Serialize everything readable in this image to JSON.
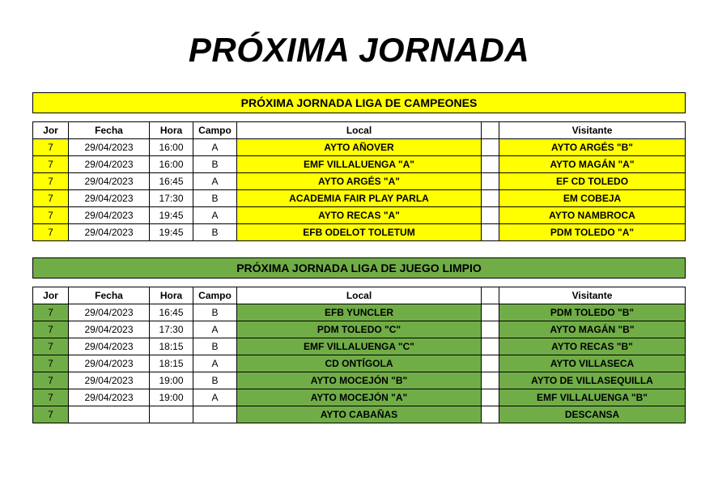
{
  "title": "PRÓXIMA JORNADA",
  "colors": {
    "league1_bg": "#ffff00",
    "league2_bg": "#70ad47",
    "border": "#000000",
    "plain_bg": "#ffffff"
  },
  "headers": {
    "jor": "Jor",
    "fecha": "Fecha",
    "hora": "Hora",
    "campo": "Campo",
    "local": "Local",
    "visitante": "Visitante"
  },
  "leagues": [
    {
      "banner": "PRÓXIMA JORNADA LIGA DE CAMPEONES",
      "color": "#ffff00",
      "rows": [
        {
          "jor": "7",
          "fecha": "29/04/2023",
          "hora": "16:00",
          "campo": "A",
          "local": "AYTO AÑOVER",
          "visitante": "AYTO ARGÉS \"B\""
        },
        {
          "jor": "7",
          "fecha": "29/04/2023",
          "hora": "16:00",
          "campo": "B",
          "local": "EMF VILLALUENGA \"A\"",
          "visitante": "AYTO MAGÁN \"A\""
        },
        {
          "jor": "7",
          "fecha": "29/04/2023",
          "hora": "16:45",
          "campo": "A",
          "local": "AYTO ARGÉS \"A\"",
          "visitante": "EF CD TOLEDO"
        },
        {
          "jor": "7",
          "fecha": "29/04/2023",
          "hora": "17:30",
          "campo": "B",
          "local": "ACADEMIA FAIR PLAY PARLA",
          "visitante": "EM COBEJA"
        },
        {
          "jor": "7",
          "fecha": "29/04/2023",
          "hora": "19:45",
          "campo": "A",
          "local": "AYTO RECAS \"A\"",
          "visitante": "AYTO NAMBROCA"
        },
        {
          "jor": "7",
          "fecha": "29/04/2023",
          "hora": "19:45",
          "campo": "B",
          "local": "EFB ODELOT TOLETUM",
          "visitante": "PDM TOLEDO \"A\""
        }
      ]
    },
    {
      "banner": "PRÓXIMA JORNADA LIGA DE JUEGO LIMPIO",
      "color": "#70ad47",
      "rows": [
        {
          "jor": "7",
          "fecha": "29/04/2023",
          "hora": "16:45",
          "campo": "B",
          "local": "EFB YUNCLER",
          "visitante": "PDM TOLEDO \"B\""
        },
        {
          "jor": "7",
          "fecha": "29/04/2023",
          "hora": "17:30",
          "campo": "A",
          "local": "PDM TOLEDO \"C\"",
          "visitante": "AYTO MAGÁN \"B\""
        },
        {
          "jor": "7",
          "fecha": "29/04/2023",
          "hora": "18:15",
          "campo": "B",
          "local": "EMF VILLALUENGA \"C\"",
          "visitante": "AYTO RECAS \"B\""
        },
        {
          "jor": "7",
          "fecha": "29/04/2023",
          "hora": "18:15",
          "campo": "A",
          "local": "CD ONTÍGOLA",
          "visitante": "AYTO VILLASECA"
        },
        {
          "jor": "7",
          "fecha": "29/04/2023",
          "hora": "19:00",
          "campo": "B",
          "local": "AYTO MOCEJÓN \"B\"",
          "visitante": "AYTO DE VILLASEQUILLA"
        },
        {
          "jor": "7",
          "fecha": "29/04/2023",
          "hora": "19:00",
          "campo": "A",
          "local": "AYTO MOCEJÓN \"A\"",
          "visitante": "EMF VILLALUENGA \"B\""
        },
        {
          "jor": "7",
          "fecha": "",
          "hora": "",
          "campo": "",
          "local": "AYTO CABAÑAS",
          "visitante": "DESCANSA"
        }
      ]
    }
  ]
}
